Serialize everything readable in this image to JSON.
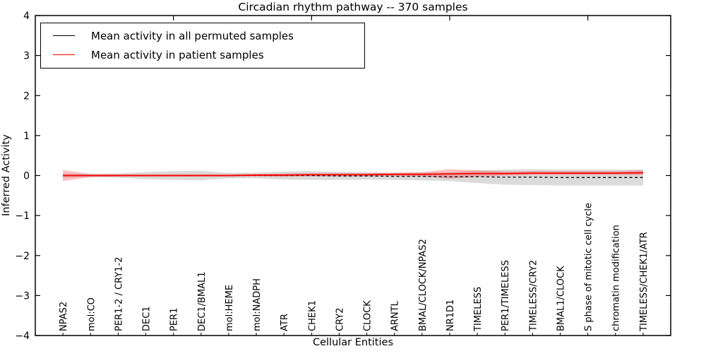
{
  "chart_data": {
    "type": "line",
    "title": "Circadian rhythm pathway -- 370 samples",
    "xlabel": "Cellular Entities",
    "ylabel": "Inferred Activity",
    "ylim": [
      -4,
      4
    ],
    "yticks": [
      -4,
      -3,
      -2,
      -1,
      0,
      1,
      2,
      3,
      4
    ],
    "top_axis_ticks_at": [
      5,
      10,
      15,
      20
    ],
    "grid": false,
    "legend_position": "upper left",
    "categories": [
      "NPAS2",
      "mol:CO",
      "PER1-2 / CRY1-2",
      "DEC1",
      "PER1",
      "DEC1/BMAL1",
      "mol:HEME",
      "mol:NADPH",
      "ATR",
      "CHEK1",
      "CRY2",
      "CLOCK",
      "ARNTL",
      "BMAL/CLOCK/NPAS2",
      "NR1D1",
      "TIMELESS",
      "PER1/TIMELESS",
      "TIMELESS/CRY2",
      "BMAL1/CLOCK",
      "S phase of mitotic cell cycle",
      "chromatin modification",
      "TIMELESS/CHEK1/ATR"
    ],
    "series": [
      {
        "name": "Mean activity in all permuted samples",
        "color": "#000000",
        "line_style": "dashed",
        "values": [
          0,
          0,
          0,
          0,
          0,
          0,
          0,
          0,
          0,
          0,
          -0.01,
          -0.01,
          -0.02,
          -0.02,
          -0.03,
          -0.03,
          -0.04,
          -0.04,
          -0.05,
          -0.05,
          -0.05,
          -0.05
        ]
      },
      {
        "name": "Mean activity in patient samples",
        "color": "#ff0000",
        "line_style": "solid",
        "values": [
          0,
          0,
          0,
          0,
          0,
          0,
          0,
          0.01,
          0.01,
          0.02,
          0.02,
          0.02,
          0.03,
          0.03,
          0.04,
          0.05,
          0.05,
          0.06,
          0.06,
          0.06,
          0.06,
          0.07
        ]
      }
    ],
    "bands": [
      {
        "name": "permuted samples spread",
        "color": "#000000",
        "opacity": 0.14,
        "upper": [
          0.05,
          0.035,
          0.05,
          0.09,
          0.11,
          0.12,
          0.07,
          0.07,
          0.1,
          0.11,
          0.09,
          0.08,
          0.07,
          0.08,
          0.08,
          0.13,
          0.15,
          0.16,
          0.15,
          0.15,
          0.15,
          0.15
        ],
        "lower": [
          -0.05,
          -0.035,
          -0.05,
          -0.09,
          -0.11,
          -0.12,
          -0.07,
          -0.07,
          -0.1,
          -0.11,
          -0.11,
          -0.1,
          -0.11,
          -0.12,
          -0.14,
          -0.19,
          -0.23,
          -0.24,
          -0.25,
          -0.25,
          -0.25,
          -0.25
        ]
      },
      {
        "name": "patient samples spread",
        "color": "#ff0000",
        "opacity": 0.24,
        "upper": [
          0.14,
          0.04,
          0.03,
          0.03,
          0.03,
          0.03,
          0.03,
          0.04,
          0.05,
          0.06,
          0.06,
          0.06,
          0.07,
          0.08,
          0.16,
          0.13,
          0.1,
          0.11,
          0.11,
          0.11,
          0.11,
          0.13
        ],
        "lower": [
          -0.14,
          -0.04,
          -0.03,
          -0.03,
          -0.03,
          -0.03,
          -0.03,
          -0.02,
          -0.03,
          -0.02,
          -0.02,
          -0.02,
          -0.01,
          -0.02,
          -0.08,
          -0.03,
          0.0,
          0.01,
          0.01,
          0.01,
          0.01,
          0.01
        ]
      }
    ]
  },
  "legend": {
    "entries": [
      {
        "label": "Mean activity in all permuted samples",
        "color": "#000000"
      },
      {
        "label": "Mean activity in patient samples",
        "color": "#ff0000"
      }
    ]
  }
}
